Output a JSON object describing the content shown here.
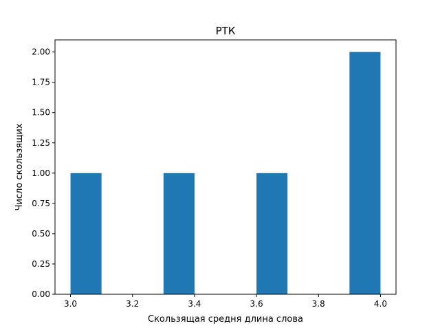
{
  "chart_data": {
    "type": "histogram",
    "title": "РТК",
    "xlabel": "Скользящая средня длина слова",
    "ylabel": "Число скользящих",
    "xlim": [
      2.95,
      4.05
    ],
    "ylim": [
      0,
      2.1
    ],
    "xticks": [
      "3.0",
      "3.2",
      "3.4",
      "3.6",
      "3.8",
      "4.0"
    ],
    "yticks": [
      "0.00",
      "0.25",
      "0.50",
      "0.75",
      "1.00",
      "1.25",
      "1.50",
      "1.75",
      "2.00"
    ],
    "bins": [
      {
        "x0": 3.0,
        "x1": 3.1,
        "count": 1
      },
      {
        "x0": 3.1,
        "x1": 3.2,
        "count": 0
      },
      {
        "x0": 3.2,
        "x1": 3.3,
        "count": 0
      },
      {
        "x0": 3.3,
        "x1": 3.4,
        "count": 1
      },
      {
        "x0": 3.4,
        "x1": 3.5,
        "count": 0
      },
      {
        "x0": 3.5,
        "x1": 3.6,
        "count": 0
      },
      {
        "x0": 3.6,
        "x1": 3.7,
        "count": 1
      },
      {
        "x0": 3.7,
        "x1": 3.8,
        "count": 0
      },
      {
        "x0": 3.8,
        "x1": 3.9,
        "count": 0
      },
      {
        "x0": 3.9,
        "x1": 4.0,
        "count": 2
      }
    ],
    "bar_color": "#1f77b4",
    "grid": false,
    "legend": "none"
  }
}
